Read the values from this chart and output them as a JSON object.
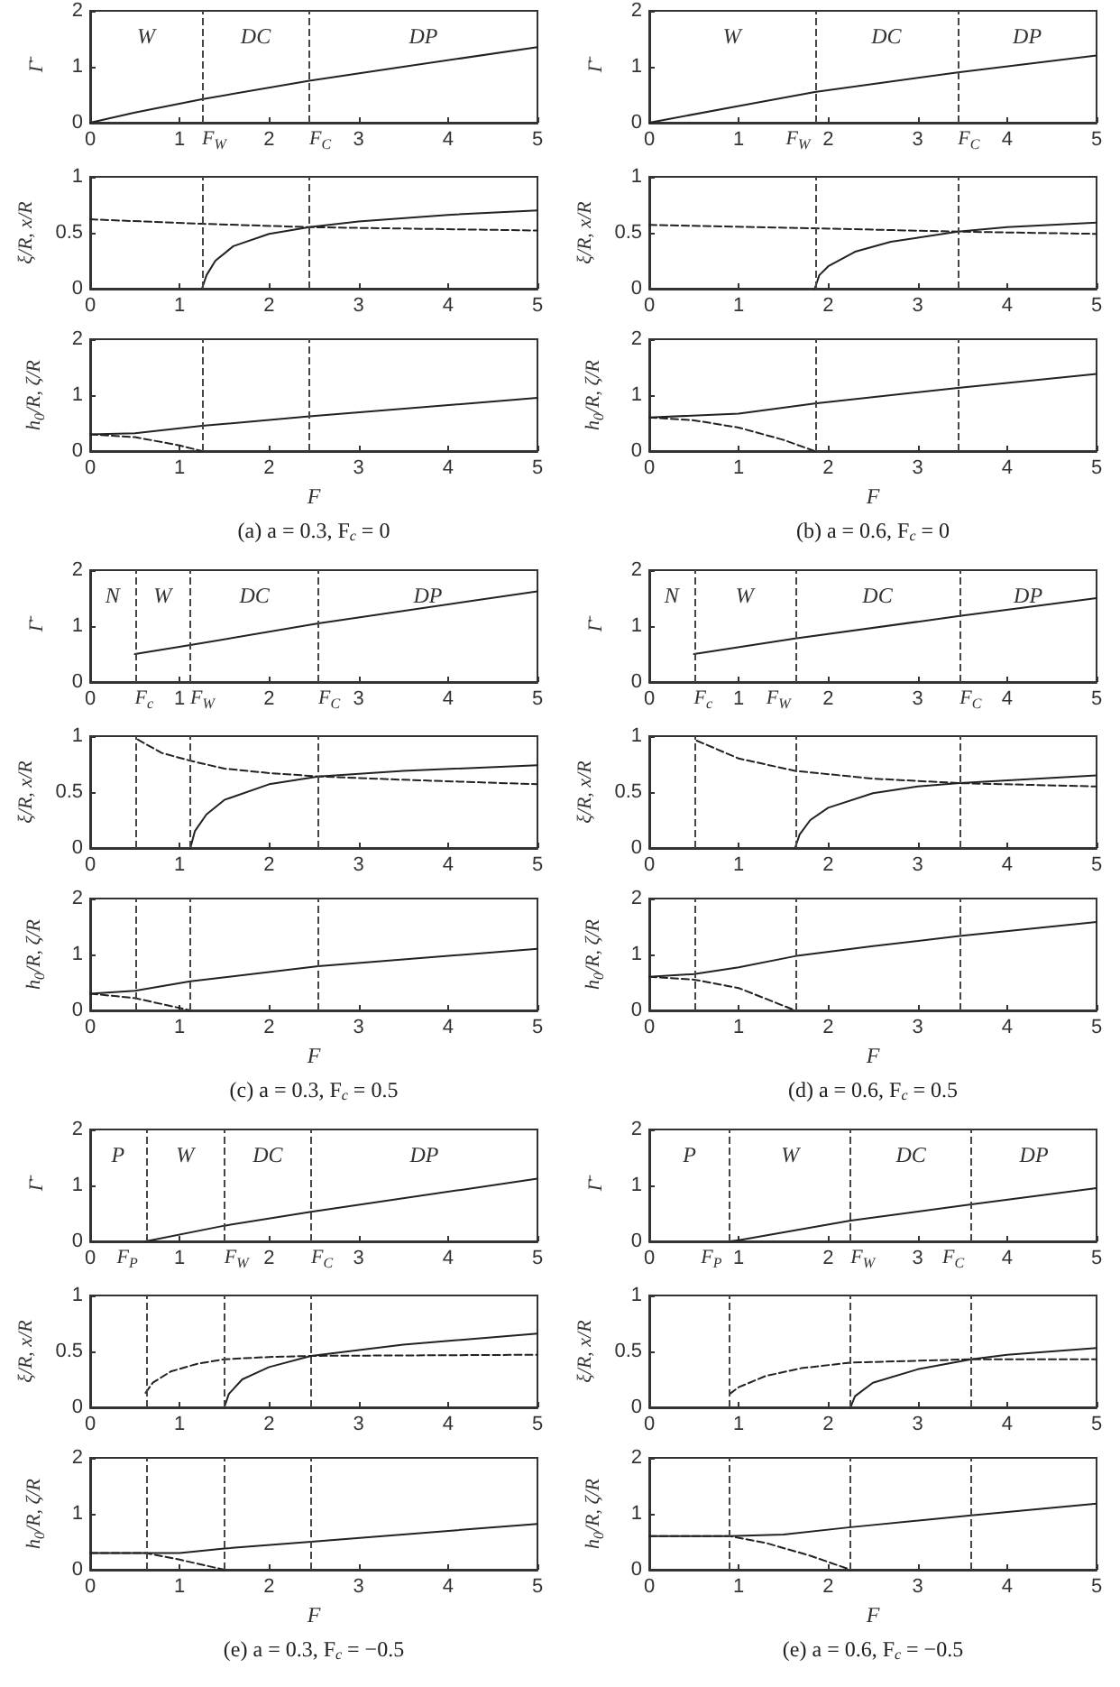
{
  "chart_data": [
    {
      "type": "line",
      "ylabel": "Γ̄",
      "xlim": [
        0,
        5
      ],
      "xticks": [
        0,
        1,
        2,
        3,
        4,
        5
      ],
      "ylim": [
        0,
        2
      ],
      "yticks": [
        0,
        1,
        2
      ],
      "marker": "none",
      "series": [
        {
          "color": "#222222",
          "line_style": "solid",
          "x": [
            0,
            0.5,
            1.25,
            2.45,
            3.5,
            5
          ],
          "values": [
            0,
            0.18,
            0.42,
            0.75,
            1.0,
            1.35
          ]
        }
      ],
      "ref_lines": [
        {
          "axis": "x",
          "value": 1.25,
          "label": "F$_{W}$",
          "line_style": "dashed"
        },
        {
          "axis": "x",
          "value": 2.45,
          "label": "F$_{C}$",
          "line_style": "dashed"
        }
      ],
      "annotations": [
        "W",
        "DC",
        "DP"
      ]
    },
    {
      "type": "line",
      "ylabel": "ξ/R, x/R",
      "xlim": [
        0,
        5
      ],
      "xticks": [
        0,
        1,
        2,
        3,
        4,
        5
      ],
      "ylim": [
        0,
        1
      ],
      "yticks": [
        0,
        0.5,
        1
      ],
      "marker": "none",
      "series": [
        {
          "color": "#222222",
          "line_style": "dashed",
          "x": [
            0,
            1.25,
            2.45,
            5
          ],
          "values": [
            0.62,
            0.58,
            0.55,
            0.52
          ]
        },
        {
          "color": "#222222",
          "line_style": "solid",
          "x": [
            1.25,
            1.3,
            1.4,
            1.6,
            2,
            2.45,
            3,
            4,
            5
          ],
          "values": [
            0,
            0.12,
            0.25,
            0.38,
            0.49,
            0.55,
            0.6,
            0.66,
            0.7
          ]
        }
      ],
      "ref_lines": [
        {
          "axis": "x",
          "value": 1.25,
          "line_style": "dashed"
        },
        {
          "axis": "x",
          "value": 2.45,
          "line_style": "dashed"
        }
      ]
    },
    {
      "type": "line",
      "ylabel": "h$_{0}$/R, ζ/R",
      "xlabel": "F",
      "xlim": [
        0,
        5
      ],
      "xticks": [
        0,
        1,
        2,
        3,
        4,
        5
      ],
      "ylim": [
        0,
        2
      ],
      "yticks": [
        0,
        1,
        2
      ],
      "marker": "none",
      "series": [
        {
          "color": "#222222",
          "line_style": "solid",
          "x": [
            0,
            0.5,
            1.25,
            2.45,
            5
          ],
          "values": [
            0.3,
            0.32,
            0.45,
            0.62,
            0.95
          ]
        },
        {
          "color": "#222222",
          "line_style": "dashed",
          "x": [
            0,
            0.5,
            1,
            1.25
          ],
          "values": [
            0.3,
            0.25,
            0.1,
            0
          ]
        }
      ],
      "ref_lines": [
        {
          "axis": "x",
          "value": 1.25,
          "line_style": "dashed"
        },
        {
          "axis": "x",
          "value": 2.45,
          "line_style": "dashed"
        }
      ],
      "title": "(a) a = 0.3, F$_{c}$ = 0"
    },
    {
      "type": "line",
      "ylabel": "Γ̄",
      "xlim": [
        0,
        5
      ],
      "xticks": [
        0,
        1,
        2,
        3,
        4,
        5
      ],
      "ylim": [
        0,
        2
      ],
      "yticks": [
        0,
        1,
        2
      ],
      "marker": "none",
      "series": [
        {
          "color": "#222222",
          "line_style": "solid",
          "x": [
            0,
            1,
            1.85,
            3.45,
            5
          ],
          "values": [
            0,
            0.3,
            0.55,
            0.9,
            1.2
          ]
        }
      ],
      "ref_lines": [
        {
          "axis": "x",
          "value": 1.85,
          "label": "F$_{W}$",
          "line_style": "dashed"
        },
        {
          "axis": "x",
          "value": 3.45,
          "label": "F$_{C}$",
          "line_style": "dashed"
        }
      ],
      "annotations": [
        "W",
        "DC",
        "DP"
      ]
    },
    {
      "type": "line",
      "ylabel": "ξ/R, x/R",
      "xlim": [
        0,
        5
      ],
      "xticks": [
        0,
        1,
        2,
        3,
        4,
        5
      ],
      "ylim": [
        0,
        1
      ],
      "yticks": [
        0,
        0.5,
        1
      ],
      "marker": "none",
      "series": [
        {
          "color": "#222222",
          "line_style": "dashed",
          "x": [
            0,
            1.85,
            3.45,
            5
          ],
          "values": [
            0.57,
            0.54,
            0.51,
            0.49
          ]
        },
        {
          "color": "#222222",
          "line_style": "solid",
          "x": [
            1.85,
            1.9,
            2,
            2.3,
            2.7,
            3.45,
            4,
            5
          ],
          "values": [
            0,
            0.12,
            0.2,
            0.33,
            0.42,
            0.51,
            0.55,
            0.59
          ]
        }
      ],
      "ref_lines": [
        {
          "axis": "x",
          "value": 1.85,
          "line_style": "dashed"
        },
        {
          "axis": "x",
          "value": 3.45,
          "line_style": "dashed"
        }
      ]
    },
    {
      "type": "line",
      "ylabel": "h$_{0}$/R, ζ/R",
      "xlabel": "F",
      "xlim": [
        0,
        5
      ],
      "xticks": [
        0,
        1,
        2,
        3,
        4,
        5
      ],
      "ylim": [
        0,
        2
      ],
      "yticks": [
        0,
        1,
        2
      ],
      "marker": "none",
      "series": [
        {
          "color": "#222222",
          "line_style": "solid",
          "x": [
            0,
            1,
            1.85,
            3.45,
            5
          ],
          "values": [
            0.6,
            0.67,
            0.85,
            1.13,
            1.38
          ]
        },
        {
          "color": "#222222",
          "line_style": "dashed",
          "x": [
            0,
            0.5,
            1,
            1.5,
            1.85
          ],
          "values": [
            0.6,
            0.55,
            0.42,
            0.2,
            0
          ]
        }
      ],
      "ref_lines": [
        {
          "axis": "x",
          "value": 1.85,
          "line_style": "dashed"
        },
        {
          "axis": "x",
          "value": 3.45,
          "line_style": "dashed"
        }
      ],
      "title": "(b) a = 0.6, F$_{c}$ = 0"
    },
    {
      "type": "line",
      "ylabel": "Γ̄",
      "xlim": [
        0,
        5
      ],
      "xticks": [
        0,
        1,
        2,
        3,
        4,
        5
      ],
      "ylim": [
        0,
        2
      ],
      "yticks": [
        0,
        1,
        2
      ],
      "marker": "none",
      "series": [
        {
          "color": "#222222",
          "line_style": "solid",
          "x": [
            0.5,
            1.12,
            2.55,
            5
          ],
          "values": [
            0.5,
            0.66,
            1.05,
            1.62
          ]
        }
      ],
      "ref_lines": [
        {
          "axis": "x",
          "value": 0.5,
          "label": "F$_{c}$",
          "line_style": "dashed"
        },
        {
          "axis": "x",
          "value": 1.12,
          "label": "F$_{W}$",
          "line_style": "dashed"
        },
        {
          "axis": "x",
          "value": 2.55,
          "label": "F$_{C}$",
          "line_style": "dashed"
        }
      ],
      "annotations": [
        "N",
        "W",
        "DC",
        "DP"
      ]
    },
    {
      "type": "line",
      "ylabel": "ξ/R, x/R",
      "xlim": [
        0,
        5
      ],
      "xticks": [
        0,
        1,
        2,
        3,
        4,
        5
      ],
      "ylim": [
        0,
        1
      ],
      "yticks": [
        0,
        0.5,
        1
      ],
      "marker": "none",
      "series": [
        {
          "color": "#222222",
          "line_style": "dashed",
          "x": [
            0.53,
            0.8,
            1.12,
            1.5,
            2,
            2.55,
            3.5,
            5
          ],
          "values": [
            0.97,
            0.85,
            0.78,
            0.71,
            0.67,
            0.64,
            0.61,
            0.57
          ]
        },
        {
          "color": "#222222",
          "line_style": "solid",
          "x": [
            1.12,
            1.17,
            1.3,
            1.5,
            2,
            2.55,
            3.5,
            5
          ],
          "values": [
            0,
            0.15,
            0.3,
            0.43,
            0.57,
            0.64,
            0.69,
            0.74
          ]
        }
      ],
      "ref_lines": [
        {
          "axis": "x",
          "value": 0.5,
          "line_style": "dashed"
        },
        {
          "axis": "x",
          "value": 1.12,
          "line_style": "dashed"
        },
        {
          "axis": "x",
          "value": 2.55,
          "line_style": "dashed"
        }
      ]
    },
    {
      "type": "line",
      "ylabel": "h$_{0}$/R, ζ/R",
      "xlabel": "F",
      "xlim": [
        0,
        5
      ],
      "xticks": [
        0,
        1,
        2,
        3,
        4,
        5
      ],
      "ylim": [
        0,
        2
      ],
      "yticks": [
        0,
        1,
        2
      ],
      "marker": "none",
      "series": [
        {
          "color": "#222222",
          "line_style": "solid",
          "x": [
            0,
            0.5,
            1.12,
            2.55,
            5
          ],
          "values": [
            0.3,
            0.35,
            0.52,
            0.79,
            1.1
          ]
        },
        {
          "color": "#222222",
          "line_style": "dashed",
          "x": [
            0,
            0.5,
            1.12
          ],
          "values": [
            0.3,
            0.22,
            0
          ]
        }
      ],
      "ref_lines": [
        {
          "axis": "x",
          "value": 0.5,
          "line_style": "dashed"
        },
        {
          "axis": "x",
          "value": 1.12,
          "line_style": "dashed"
        },
        {
          "axis": "x",
          "value": 2.55,
          "line_style": "dashed"
        }
      ],
      "title": "(c) a = 0.3, F$_{c}$ = 0.5"
    },
    {
      "type": "line",
      "ylabel": "Γ̄",
      "xlim": [
        0,
        5
      ],
      "xticks": [
        0,
        1,
        2,
        3,
        4,
        5
      ],
      "ylim": [
        0,
        2
      ],
      "yticks": [
        0,
        1,
        2
      ],
      "marker": "none",
      "series": [
        {
          "color": "#222222",
          "line_style": "solid",
          "x": [
            0.5,
            1.63,
            3.47,
            5
          ],
          "values": [
            0.5,
            0.78,
            1.18,
            1.5
          ]
        }
      ],
      "ref_lines": [
        {
          "axis": "x",
          "value": 0.5,
          "label": "F$_{c}$",
          "line_style": "dashed"
        },
        {
          "axis": "x",
          "value": 1.63,
          "label": "F$_{W}$",
          "line_style": "dashed"
        },
        {
          "axis": "x",
          "value": 3.47,
          "label": "F$_{C}$",
          "line_style": "dashed"
        }
      ],
      "annotations": [
        "N",
        "W",
        "DC",
        "DP"
      ]
    },
    {
      "type": "line",
      "ylabel": "ξ/R, x/R",
      "xlim": [
        0,
        5
      ],
      "xticks": [
        0,
        1,
        2,
        3,
        4,
        5
      ],
      "ylim": [
        0,
        1
      ],
      "yticks": [
        0,
        0.5,
        1
      ],
      "marker": "none",
      "series": [
        {
          "color": "#222222",
          "line_style": "dashed",
          "x": [
            0.53,
            1,
            1.63,
            2.5,
            3.47,
            5
          ],
          "values": [
            0.96,
            0.8,
            0.69,
            0.62,
            0.58,
            0.55
          ]
        },
        {
          "color": "#222222",
          "line_style": "solid",
          "x": [
            1.63,
            1.68,
            1.8,
            2,
            2.5,
            3,
            3.47,
            5
          ],
          "values": [
            0,
            0.12,
            0.25,
            0.36,
            0.49,
            0.55,
            0.58,
            0.65
          ]
        }
      ],
      "ref_lines": [
        {
          "axis": "x",
          "value": 0.5,
          "line_style": "dashed"
        },
        {
          "axis": "x",
          "value": 1.63,
          "line_style": "dashed"
        },
        {
          "axis": "x",
          "value": 3.47,
          "line_style": "dashed"
        }
      ]
    },
    {
      "type": "line",
      "ylabel": "h$_{0}$/R, ζ/R",
      "xlabel": "F",
      "xlim": [
        0,
        5
      ],
      "xticks": [
        0,
        1,
        2,
        3,
        4,
        5
      ],
      "ylim": [
        0,
        2
      ],
      "yticks": [
        0,
        1,
        2
      ],
      "marker": "none",
      "series": [
        {
          "color": "#222222",
          "line_style": "solid",
          "x": [
            0,
            0.5,
            1,
            1.63,
            2.5,
            3.47,
            5
          ],
          "values": [
            0.6,
            0.65,
            0.77,
            0.97,
            1.15,
            1.33,
            1.58
          ]
        },
        {
          "color": "#222222",
          "line_style": "dashed",
          "x": [
            0,
            0.5,
            1,
            1.63
          ],
          "values": [
            0.6,
            0.55,
            0.4,
            0
          ]
        }
      ],
      "ref_lines": [
        {
          "axis": "x",
          "value": 0.5,
          "line_style": "dashed"
        },
        {
          "axis": "x",
          "value": 1.63,
          "line_style": "dashed"
        },
        {
          "axis": "x",
          "value": 3.47,
          "line_style": "dashed"
        }
      ],
      "title": "(d) a = 0.6, F$_{c}$ = 0.5"
    },
    {
      "type": "line",
      "ylabel": "Γ̄",
      "xlim": [
        0,
        5
      ],
      "xticks": [
        0,
        1,
        2,
        3,
        4,
        5
      ],
      "ylim": [
        0,
        2
      ],
      "yticks": [
        0,
        1,
        2
      ],
      "marker": "none",
      "series": [
        {
          "color": "#222222",
          "line_style": "solid",
          "x": [
            0.62,
            1.5,
            2.47,
            5
          ],
          "values": [
            0,
            0.28,
            0.53,
            1.12
          ]
        }
      ],
      "ref_lines": [
        {
          "axis": "x",
          "value": 0.62,
          "label": "F$_{P}$",
          "line_style": "dashed"
        },
        {
          "axis": "x",
          "value": 1.5,
          "label": "F$_{W}$",
          "line_style": "dashed"
        },
        {
          "axis": "x",
          "value": 2.47,
          "label": "F$_{C}$",
          "line_style": "dashed"
        }
      ],
      "annotations": [
        "P",
        "W",
        "DC",
        "DP"
      ]
    },
    {
      "type": "line",
      "ylabel": "ξ/R, x/R",
      "xlim": [
        0,
        5
      ],
      "xticks": [
        0,
        1,
        2,
        3,
        4,
        5
      ],
      "ylim": [
        0,
        1
      ],
      "yticks": [
        0,
        0.5,
        1
      ],
      "marker": "none",
      "series": [
        {
          "color": "#222222",
          "line_style": "dashed",
          "x": [
            0.62,
            0.7,
            0.9,
            1.2,
            1.5,
            2,
            2.47,
            5
          ],
          "values": [
            0.13,
            0.22,
            0.32,
            0.39,
            0.43,
            0.45,
            0.46,
            0.47
          ]
        },
        {
          "color": "#222222",
          "line_style": "solid",
          "x": [
            1.5,
            1.55,
            1.7,
            2,
            2.47,
            3.5,
            5
          ],
          "values": [
            0,
            0.12,
            0.25,
            0.36,
            0.46,
            0.56,
            0.66
          ]
        }
      ],
      "ref_lines": [
        {
          "axis": "x",
          "value": 0.62,
          "line_style": "dashed"
        },
        {
          "axis": "x",
          "value": 1.5,
          "line_style": "dashed"
        },
        {
          "axis": "x",
          "value": 2.47,
          "line_style": "dashed"
        }
      ]
    },
    {
      "type": "line",
      "ylabel": "h$_{0}$/R, ζ/R",
      "xlabel": "F",
      "xlim": [
        0,
        5
      ],
      "xticks": [
        0,
        1,
        2,
        3,
        4,
        5
      ],
      "ylim": [
        0,
        2
      ],
      "yticks": [
        0,
        1,
        2
      ],
      "marker": "none",
      "series": [
        {
          "color": "#222222",
          "line_style": "solid",
          "x": [
            0,
            0.62,
            1,
            1.5,
            2.47,
            5
          ],
          "values": [
            0.3,
            0.3,
            0.3,
            0.38,
            0.5,
            0.82
          ]
        },
        {
          "color": "#222222",
          "line_style": "dashed",
          "x": [
            0,
            0.62,
            1,
            1.5
          ],
          "values": [
            0.3,
            0.3,
            0.18,
            0
          ]
        }
      ],
      "ref_lines": [
        {
          "axis": "x",
          "value": 0.62,
          "line_style": "dashed"
        },
        {
          "axis": "x",
          "value": 1.5,
          "line_style": "dashed"
        },
        {
          "axis": "x",
          "value": 2.47,
          "line_style": "dashed"
        }
      ],
      "title": "(e) a = 0.3, F$_{c}$ = −0.5"
    },
    {
      "type": "line",
      "ylabel": "Γ̄",
      "xlim": [
        0,
        5
      ],
      "xticks": [
        0,
        1,
        2,
        3,
        4,
        5
      ],
      "ylim": [
        0,
        2
      ],
      "yticks": [
        0,
        1,
        2
      ],
      "marker": "none",
      "series": [
        {
          "color": "#222222",
          "line_style": "solid",
          "x": [
            0.9,
            1,
            2.25,
            3.6,
            5
          ],
          "values": [
            0,
            0.02,
            0.37,
            0.66,
            0.95
          ]
        }
      ],
      "ref_lines": [
        {
          "axis": "x",
          "value": 0.9,
          "label": "F$_{P}$",
          "line_style": "dashed"
        },
        {
          "axis": "x",
          "value": 2.25,
          "label": "F$_{W}$",
          "line_style": "dashed"
        },
        {
          "axis": "x",
          "value": 3.6,
          "label": "F$_{C}$",
          "line_style": "dashed"
        }
      ],
      "annotations": [
        "P",
        "W",
        "DC",
        "DP"
      ]
    },
    {
      "type": "line",
      "ylabel": "ξ/R, x/R",
      "xlim": [
        0,
        5
      ],
      "xticks": [
        0,
        1,
        2,
        3,
        4,
        5
      ],
      "ylim": [
        0,
        1
      ],
      "yticks": [
        0,
        0.5,
        1
      ],
      "marker": "none",
      "series": [
        {
          "color": "#222222",
          "line_style": "dashed",
          "x": [
            0.9,
            1,
            1.3,
            1.7,
            2.25,
            3.6,
            5
          ],
          "values": [
            0.12,
            0.18,
            0.28,
            0.35,
            0.4,
            0.43,
            0.43
          ]
        },
        {
          "color": "#222222",
          "line_style": "solid",
          "x": [
            2.25,
            2.3,
            2.5,
            3,
            3.6,
            4,
            5
          ],
          "values": [
            0,
            0.1,
            0.22,
            0.34,
            0.43,
            0.47,
            0.53
          ]
        }
      ],
      "ref_lines": [
        {
          "axis": "x",
          "value": 0.9,
          "line_style": "dashed"
        },
        {
          "axis": "x",
          "value": 2.25,
          "line_style": "dashed"
        },
        {
          "axis": "x",
          "value": 3.6,
          "line_style": "dashed"
        }
      ]
    },
    {
      "type": "line",
      "ylabel": "h$_{0}$/R, ζ/R",
      "xlabel": "F",
      "xlim": [
        0,
        5
      ],
      "xticks": [
        0,
        1,
        2,
        3,
        4,
        5
      ],
      "ylim": [
        0,
        2
      ],
      "yticks": [
        0,
        1,
        2
      ],
      "marker": "none",
      "series": [
        {
          "color": "#222222",
          "line_style": "solid",
          "x": [
            0,
            0.9,
            1.5,
            2.25,
            3.6,
            5
          ],
          "values": [
            0.6,
            0.6,
            0.63,
            0.76,
            0.97,
            1.18
          ]
        },
        {
          "color": "#222222",
          "line_style": "dashed",
          "x": [
            0,
            0.9,
            1.3,
            1.8,
            2.25
          ],
          "values": [
            0.6,
            0.6,
            0.48,
            0.25,
            0
          ]
        }
      ],
      "ref_lines": [
        {
          "axis": "x",
          "value": 0.9,
          "line_style": "dashed"
        },
        {
          "axis": "x",
          "value": 2.25,
          "line_style": "dashed"
        },
        {
          "axis": "x",
          "value": 3.6,
          "line_style": "dashed"
        }
      ],
      "title": "(e) a = 0.6, F$_{c}$ = −0.5"
    }
  ]
}
